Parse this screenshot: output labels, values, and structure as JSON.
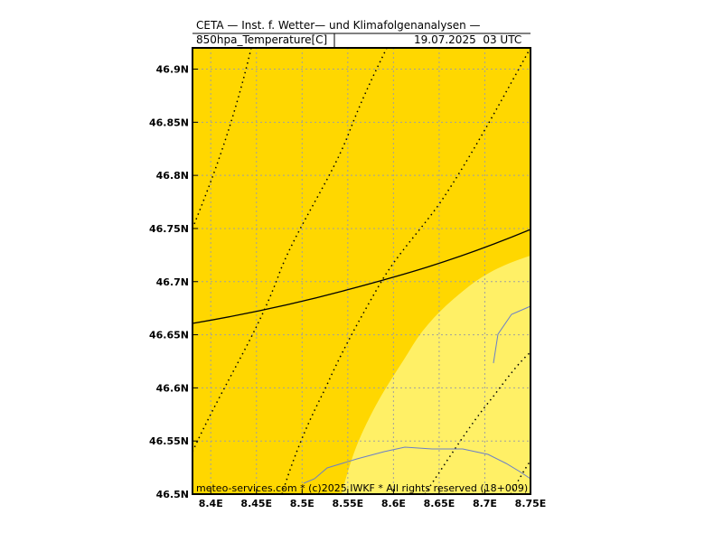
{
  "header": {
    "line1": "CETA — Inst. f. Wetter— und Klimafolgenanalysen —",
    "field": "850hpa_Temperature[C]",
    "datetime": "19.07.2025  03 UTC"
  },
  "footer": "meteo-services.com * (c)2025 IWKF * All rights reserved (18+009)",
  "axes": {
    "lon_ticks": [
      "8.4E",
      "8.45E",
      "8.5E",
      "8.55E",
      "8.6E",
      "8.65E",
      "8.7E",
      "8.75E"
    ],
    "lat_ticks": [
      "46.5N",
      "46.55N",
      "46.6N",
      "46.65N",
      "46.7N",
      "46.75N",
      "46.8N",
      "46.85N",
      "46.9N"
    ],
    "lon_range": [
      8.38,
      8.75
    ],
    "lat_range": [
      46.5,
      46.92
    ]
  },
  "colors": {
    "warm_fill": "#ffd700",
    "warmer_fill": "#fff066",
    "grid": "#a0a0a0",
    "contour": "#000000",
    "border": "#6a7fc8"
  }
}
